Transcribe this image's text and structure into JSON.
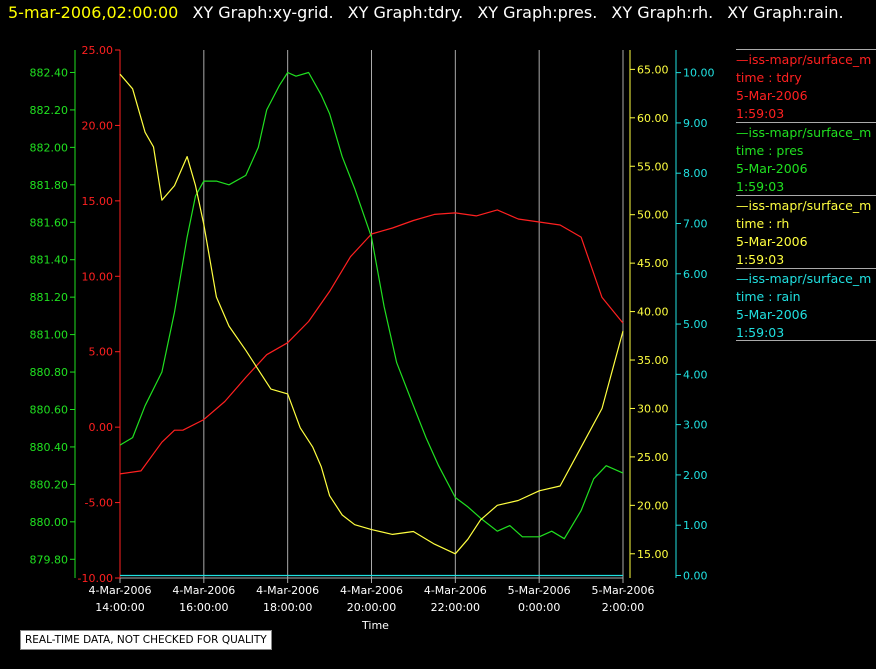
{
  "header": {
    "timestamp": "5-mar-2006,02:00:00",
    "graph_labels": [
      "XY Graph:xy-grid.",
      "XY Graph:tdry.",
      "XY Graph:pres.",
      "XY Graph:rh.",
      "XY Graph:rain."
    ]
  },
  "colors": {
    "tdry": "#ff2020",
    "pres": "#20e020",
    "rh": "#ffff40",
    "rain": "#20e0e0",
    "grid": "#aaaaaa",
    "background": "#000000"
  },
  "legend": [
    {
      "source": "—iss-mapr/surface_m",
      "line2": "time : tdry",
      "date": "5-Mar-2006",
      "time": "1:59:03",
      "color": "#ff2020"
    },
    {
      "source": "—iss-mapr/surface_m",
      "line2": "time : pres",
      "date": "5-Mar-2006",
      "time": "1:59:03",
      "color": "#20e020"
    },
    {
      "source": "—iss-mapr/surface_m",
      "line2": "time : rh",
      "date": "5-Mar-2006",
      "time": "1:59:03",
      "color": "#ffff40"
    },
    {
      "source": "—iss-mapr/surface_m",
      "line2": "time : rain",
      "date": "5-Mar-2006",
      "time": "1:59:03",
      "color": "#20e0e0"
    }
  ],
  "disclaimer": "REAL-TIME DATA, NOT CHECKED FOR QUALITY",
  "chart_data": {
    "type": "line",
    "xlabel": "Time",
    "x_ticks": [
      {
        "date": "4-Mar-2006",
        "time": "14:00:00",
        "hour": 14
      },
      {
        "date": "4-Mar-2006",
        "time": "16:00:00",
        "hour": 16
      },
      {
        "date": "4-Mar-2006",
        "time": "18:00:00",
        "hour": 18
      },
      {
        "date": "4-Mar-2006",
        "time": "20:00:00",
        "hour": 20
      },
      {
        "date": "4-Mar-2006",
        "time": "22:00:00",
        "hour": 22
      },
      {
        "date": "5-Mar-2006",
        "time": "0:00:00",
        "hour": 24
      },
      {
        "date": "5-Mar-2006",
        "time": "2:00:00",
        "hour": 26
      }
    ],
    "xlim": [
      14,
      26
    ],
    "grid": true,
    "axes": [
      {
        "name": "tdry",
        "side": "left",
        "ylim": [
          -10,
          25
        ],
        "ticks": [
          "25.00",
          "20.00",
          "15.00",
          "10.00",
          "5.00",
          "0.00",
          "-5.00",
          "-10.00"
        ],
        "tick_values": [
          25,
          20,
          15,
          10,
          5,
          0,
          -5,
          -10
        ],
        "color": "#ff2020"
      },
      {
        "name": "pres",
        "side": "left",
        "ylim": [
          879.7,
          882.52
        ],
        "ticks": [
          "882.40",
          "882.20",
          "882.00",
          "881.80",
          "881.60",
          "881.40",
          "881.20",
          "881.00",
          "880.80",
          "880.60",
          "880.40",
          "880.20",
          "880.00",
          "879.80"
        ],
        "tick_values": [
          882.4,
          882.2,
          882.0,
          881.8,
          881.6,
          881.4,
          881.2,
          881.0,
          880.8,
          880.6,
          880.4,
          880.2,
          880.0,
          879.8
        ],
        "color": "#20e020"
      },
      {
        "name": "rh",
        "side": "right",
        "ylim": [
          12.5,
          67
        ],
        "ticks": [
          "65.00",
          "60.00",
          "55.00",
          "50.00",
          "45.00",
          "40.00",
          "35.00",
          "30.00",
          "25.00",
          "20.00",
          "15.00"
        ],
        "tick_values": [
          65,
          60,
          55,
          50,
          45,
          40,
          35,
          30,
          25,
          20,
          15
        ],
        "color": "#ffff40"
      },
      {
        "name": "rain",
        "side": "right",
        "ylim": [
          -0.05,
          10.45
        ],
        "ticks": [
          "10.00",
          "9.00",
          "8.00",
          "7.00",
          "6.00",
          "5.00",
          "4.00",
          "3.00",
          "2.00",
          "1.00",
          "0.00"
        ],
        "tick_values": [
          10,
          9,
          8,
          7,
          6,
          5,
          4,
          3,
          2,
          1,
          0
        ],
        "color": "#20e0e0"
      }
    ],
    "series": [
      {
        "name": "tdry",
        "axis": "tdry",
        "color": "#ff2020",
        "x": [
          14.0,
          14.5,
          15.0,
          15.3,
          15.5,
          16.0,
          16.5,
          17.0,
          17.5,
          18.0,
          18.5,
          19.0,
          19.5,
          20.0,
          20.5,
          21.0,
          21.5,
          22.0,
          22.5,
          23.0,
          23.5,
          24.0,
          24.5,
          25.0,
          25.5,
          26.0
        ],
        "y": [
          -3.1,
          -2.9,
          -1.0,
          -0.2,
          -0.2,
          0.5,
          1.7,
          3.3,
          4.8,
          5.6,
          7.0,
          9.0,
          11.3,
          12.8,
          13.2,
          13.7,
          14.1,
          14.2,
          14.0,
          14.4,
          13.8,
          13.6,
          13.4,
          12.6,
          8.6,
          6.9
        ]
      },
      {
        "name": "pres",
        "axis": "pres",
        "color": "#20e020",
        "x": [
          14.0,
          14.3,
          14.6,
          15.0,
          15.3,
          15.6,
          15.8,
          16.0,
          16.3,
          16.6,
          17.0,
          17.3,
          17.5,
          17.8,
          18.0,
          18.2,
          18.5,
          18.8,
          19.0,
          19.3,
          19.6,
          20.0,
          20.3,
          20.6,
          21.0,
          21.3,
          21.6,
          22.0,
          22.3,
          22.6,
          23.0,
          23.3,
          23.6,
          24.0,
          24.3,
          24.6,
          25.0,
          25.3,
          25.6,
          26.0
        ],
        "y": [
          880.41,
          880.45,
          880.62,
          880.8,
          881.12,
          881.52,
          881.74,
          881.82,
          881.82,
          881.8,
          881.85,
          882.0,
          882.2,
          882.33,
          882.4,
          882.38,
          882.4,
          882.28,
          882.18,
          881.95,
          881.78,
          881.52,
          881.15,
          880.85,
          880.62,
          880.45,
          880.3,
          880.13,
          880.08,
          880.02,
          879.95,
          879.98,
          879.92,
          879.92,
          879.95,
          879.91,
          880.06,
          880.23,
          880.3,
          880.26
        ]
      },
      {
        "name": "rh",
        "axis": "rh",
        "color": "#ffff40",
        "x": [
          14.0,
          14.3,
          14.6,
          14.8,
          15.0,
          15.3,
          15.6,
          15.8,
          16.0,
          16.3,
          16.6,
          17.0,
          17.3,
          17.6,
          18.0,
          18.3,
          18.6,
          18.8,
          19.0,
          19.3,
          19.6,
          20.0,
          20.5,
          21.0,
          21.5,
          22.0,
          22.3,
          22.6,
          23.0,
          23.5,
          24.0,
          24.5,
          25.0,
          25.5,
          26.0
        ],
        "y": [
          64.5,
          63.0,
          58.5,
          57.0,
          51.5,
          53.0,
          56.0,
          53.0,
          49.0,
          41.5,
          38.5,
          36.0,
          34.0,
          32.0,
          31.5,
          28.0,
          26.0,
          24.0,
          21.0,
          19.0,
          18.0,
          17.5,
          17.0,
          17.3,
          16.0,
          15.0,
          16.5,
          18.5,
          20.0,
          20.5,
          21.5,
          22.0,
          26.0,
          30.0,
          38.0
        ]
      },
      {
        "name": "rain",
        "axis": "rain",
        "color": "#20e0e0",
        "x": [
          14.0,
          26.0
        ],
        "y": [
          0.0,
          0.0
        ]
      }
    ]
  }
}
